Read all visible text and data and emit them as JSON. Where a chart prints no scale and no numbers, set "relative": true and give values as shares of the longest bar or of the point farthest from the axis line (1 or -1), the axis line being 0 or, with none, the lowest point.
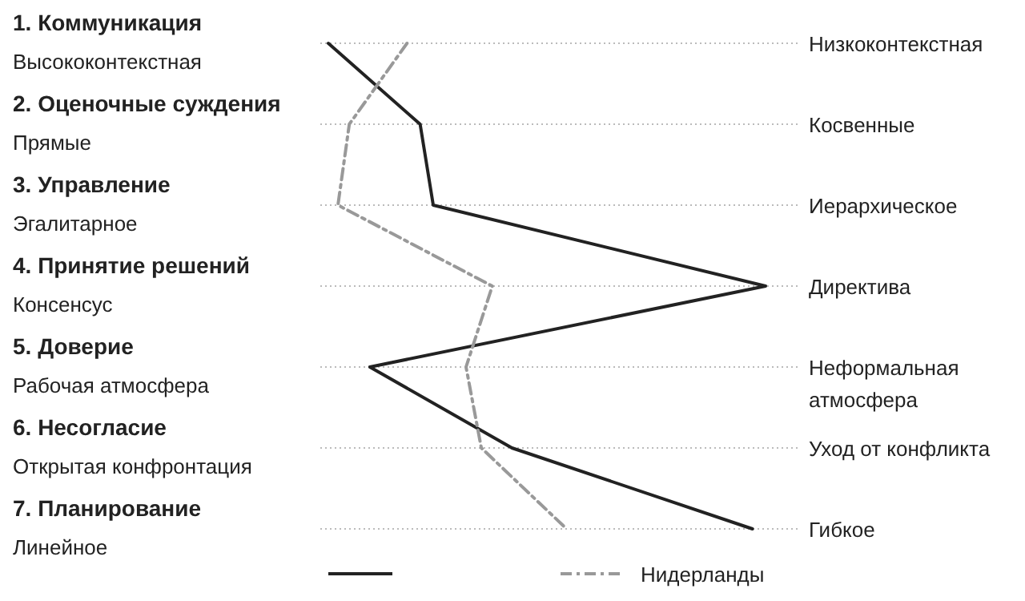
{
  "chart_data": {
    "type": "line",
    "orientation": "horizontal",
    "relative": true,
    "grid": "y",
    "legend": "bottom",
    "marker": "none",
    "categories": [
      "1. Коммуникация\nВысококонтекстная",
      "2. Оценочные суждения\nПрямые",
      "3. Управление\nЭгалитарное",
      "4. Принятие решений\nКонсенсус",
      "5. Доверие\nРабочая атмосфера",
      "6. Несогласие\nОткрытая конфронтация",
      "7. Планирование\nЛинейное"
    ],
    "annotations": [
      "Низкоконтекстная",
      "Косвенные",
      "Иерархическое",
      "Директива",
      "Неформальная\nатмосфера",
      "Уход от конфликта",
      "Гибкое"
    ],
    "series": [
      {
        "color": "#222222",
        "line_style": "solid",
        "values": [
          0,
          0.21,
          0.24,
          1,
          0.095,
          0.42,
          0.97
        ]
      },
      {
        "name": "Нидерланды",
        "color": "#999999",
        "line_style": "dashed",
        "values": [
          0.18,
          0.048,
          0.022,
          0.375,
          0.315,
          0.35,
          0.545
        ]
      }
    ]
  }
}
